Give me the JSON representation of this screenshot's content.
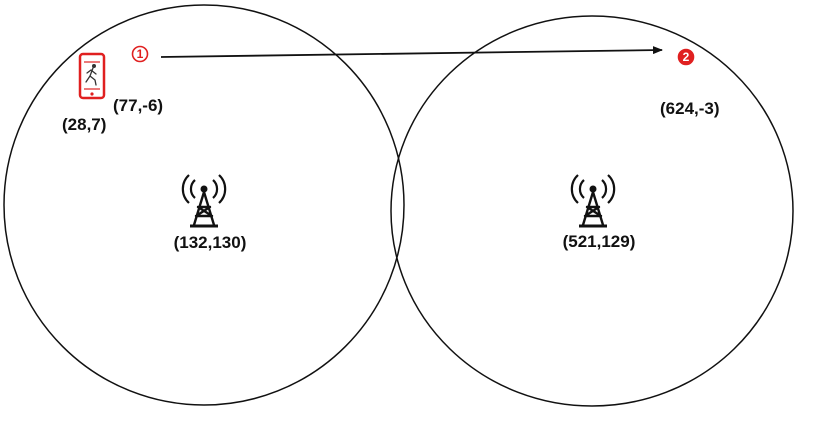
{
  "colors": {
    "stroke": "#111111",
    "accent": "#e02020",
    "background": "#ffffff"
  },
  "cells": [
    {
      "tower_icon": "cell-tower-icon",
      "coord_label": "(132,130)"
    },
    {
      "tower_icon": "cell-tower-icon",
      "coord_label": "(521,129)"
    }
  ],
  "device": {
    "icon": "phone-walking-person-icon",
    "coord_label": "(28,7)"
  },
  "waypoints": [
    {
      "number": "1",
      "coord_label": "(77,-6)"
    },
    {
      "number": "2",
      "coord_label": "(624,-3)"
    }
  ],
  "movement": {
    "icon": "arrow-right-icon"
  }
}
